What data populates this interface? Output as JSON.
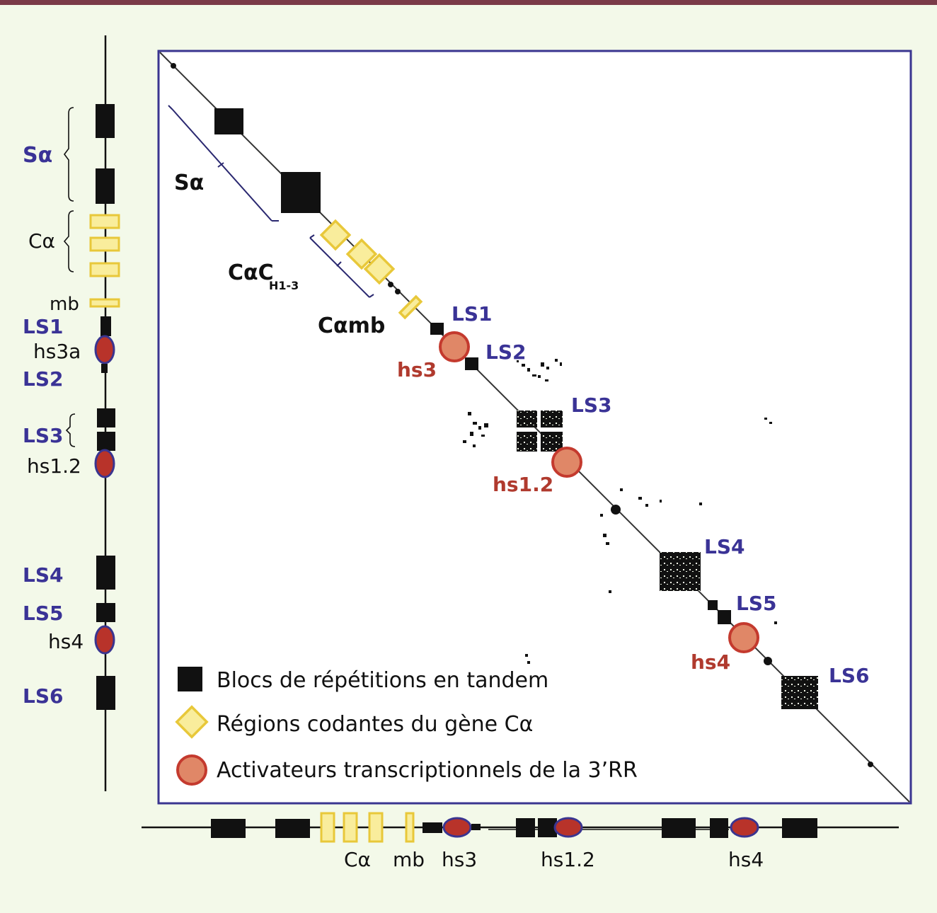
{
  "colors": {
    "background": "#f3f9e9",
    "top_bar": "#7a3b48",
    "frame": "#3a3590",
    "region_label": "#3a3396",
    "enhancer_label": "#b03a2e",
    "block": "#111111",
    "coding_fill": "#f9ed9c",
    "coding_stroke": "#e8c83a",
    "enhancer_fill": "#e08767",
    "enhancer_stroke": "#c43a2e",
    "enhancer_side_fill": "#b8332a",
    "enhancer_side_stroke": "#3a3590"
  },
  "left_axis": {
    "s_alpha": "Sα",
    "c_alpha": "Cα",
    "mb": "mb",
    "ls1": "LS1",
    "hs3a": "hs3a",
    "ls2": "LS2",
    "ls3": "LS3",
    "hs12": "hs1.2",
    "ls4": "LS4",
    "ls5": "LS5",
    "hs4": "hs4",
    "ls6": "LS6"
  },
  "dotplot": {
    "s_alpha": "Sα",
    "c_alpha_ch_main": "CαC",
    "c_alpha_ch_sub": "H1-3",
    "c_alpha_mb": "Cαmb",
    "ls1": "LS1",
    "ls2": "LS2",
    "ls3": "LS3",
    "ls4": "LS4",
    "ls5": "LS5",
    "ls6": "LS6",
    "hs3": "hs3",
    "hs12": "hs1.2",
    "hs4": "hs4"
  },
  "legend": {
    "blocks": "Blocs de répétitions en tandem",
    "coding": "Régions codantes du gène Cα",
    "enhancers": "Activateurs transcriptionnels de la 3’RR"
  },
  "bottom_axis": {
    "c_alpha": "Cα",
    "mb": "mb",
    "hs3": "hs3",
    "hs12": "hs1.2",
    "hs4": "hs4"
  }
}
